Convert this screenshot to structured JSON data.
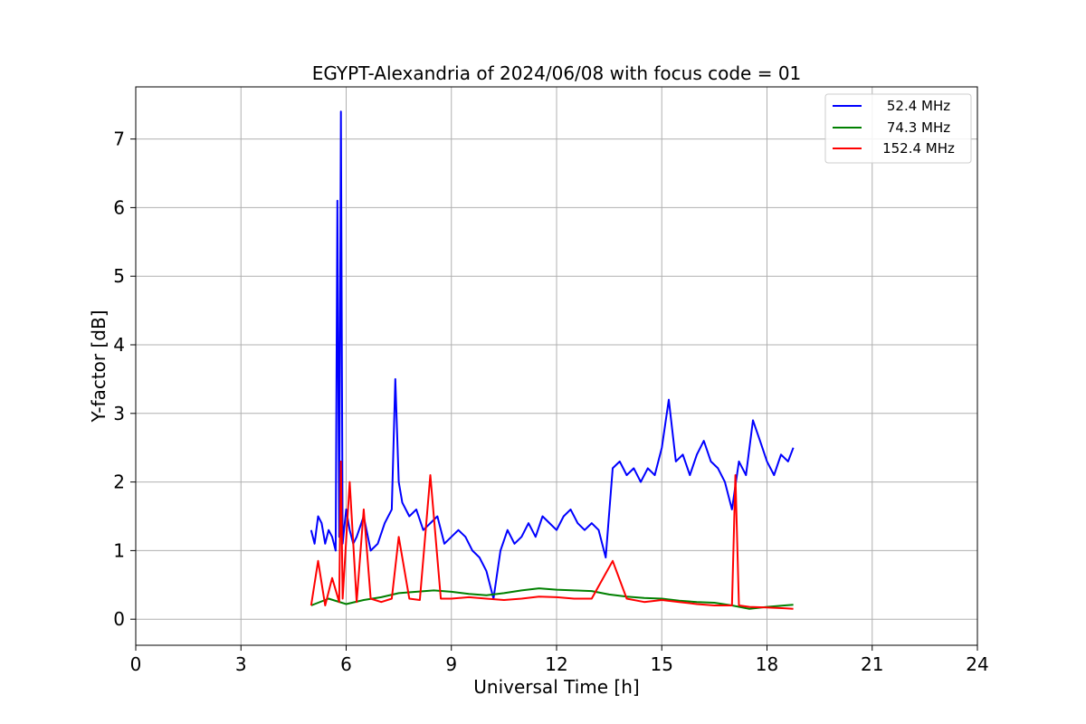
{
  "chart_data": {
    "type": "line",
    "title": "EGYPT-Alexandria of 2024/06/08 with focus code = 01",
    "xlabel": "Universal Time [h]",
    "ylabel": "Y-factor [dB]",
    "xlim": [
      0,
      24
    ],
    "ylim": [
      -0.38,
      7.76
    ],
    "xticks": [
      0,
      3,
      6,
      9,
      12,
      15,
      18,
      21,
      24
    ],
    "xtick_labels": [
      "0",
      "3",
      "6",
      "9",
      "12",
      "15",
      "18",
      "21",
      "24"
    ],
    "yticks": [
      0,
      1,
      2,
      3,
      4,
      5,
      6,
      7
    ],
    "ytick_labels": [
      "0",
      "1",
      "2",
      "3",
      "4",
      "5",
      "6",
      "7"
    ],
    "grid": true,
    "legend_position": "top-right",
    "series": [
      {
        "name": "52.4 MHz",
        "color": "#0000ff",
        "x": [
          5.0,
          5.1,
          5.2,
          5.3,
          5.4,
          5.5,
          5.6,
          5.7,
          5.75,
          5.8,
          5.85,
          5.9,
          6.0,
          6.1,
          6.2,
          6.3,
          6.5,
          6.7,
          6.9,
          7.1,
          7.3,
          7.4,
          7.5,
          7.6,
          7.8,
          8.0,
          8.2,
          8.4,
          8.6,
          8.8,
          9.0,
          9.2,
          9.4,
          9.6,
          9.8,
          10.0,
          10.2,
          10.4,
          10.6,
          10.8,
          11.0,
          11.2,
          11.4,
          11.6,
          11.8,
          12.0,
          12.2,
          12.4,
          12.6,
          12.8,
          13.0,
          13.2,
          13.4,
          13.6,
          13.8,
          14.0,
          14.2,
          14.4,
          14.6,
          14.8,
          15.0,
          15.2,
          15.4,
          15.6,
          15.8,
          16.0,
          16.2,
          16.4,
          16.6,
          16.8,
          17.0,
          17.2,
          17.4,
          17.6,
          17.8,
          18.0,
          18.2,
          18.4,
          18.6,
          18.75
        ],
        "y": [
          1.3,
          1.1,
          1.5,
          1.4,
          1.1,
          1.3,
          1.2,
          1.0,
          6.1,
          1.2,
          7.4,
          1.1,
          1.6,
          1.3,
          1.1,
          1.2,
          1.5,
          1.0,
          1.1,
          1.4,
          1.6,
          3.5,
          2.0,
          1.7,
          1.5,
          1.6,
          1.3,
          1.4,
          1.5,
          1.1,
          1.2,
          1.3,
          1.2,
          1.0,
          0.9,
          0.7,
          0.3,
          1.0,
          1.3,
          1.1,
          1.2,
          1.4,
          1.2,
          1.5,
          1.4,
          1.3,
          1.5,
          1.6,
          1.4,
          1.3,
          1.4,
          1.3,
          0.9,
          2.2,
          2.3,
          2.1,
          2.2,
          2.0,
          2.2,
          2.1,
          2.5,
          3.2,
          2.3,
          2.4,
          2.1,
          2.4,
          2.6,
          2.3,
          2.2,
          2.0,
          1.6,
          2.3,
          2.1,
          2.9,
          2.6,
          2.3,
          2.1,
          2.4,
          2.3,
          2.5
        ]
      },
      {
        "name": "74.3 MHz",
        "color": "#008000",
        "x": [
          5.0,
          5.5,
          6.0,
          6.5,
          7.0,
          7.5,
          8.0,
          8.5,
          9.0,
          9.5,
          10.0,
          10.5,
          11.0,
          11.5,
          12.0,
          12.5,
          13.0,
          13.5,
          14.0,
          14.5,
          15.0,
          15.5,
          16.0,
          16.5,
          17.0,
          17.5,
          18.0,
          18.5,
          18.75
        ],
        "y": [
          0.2,
          0.3,
          0.22,
          0.28,
          0.32,
          0.38,
          0.4,
          0.42,
          0.4,
          0.37,
          0.35,
          0.38,
          0.42,
          0.45,
          0.43,
          0.42,
          0.41,
          0.36,
          0.33,
          0.31,
          0.3,
          0.27,
          0.25,
          0.24,
          0.2,
          0.15,
          0.18,
          0.2,
          0.21
        ]
      },
      {
        "name": "152.4 MHz",
        "color": "#ff0000",
        "x": [
          5.0,
          5.2,
          5.4,
          5.6,
          5.8,
          5.85,
          5.9,
          6.1,
          6.3,
          6.5,
          6.7,
          7.0,
          7.3,
          7.5,
          7.8,
          8.1,
          8.4,
          8.7,
          9.0,
          9.5,
          10.0,
          10.5,
          11.0,
          11.5,
          12.0,
          12.5,
          13.0,
          13.6,
          14.0,
          14.5,
          15.0,
          15.5,
          16.0,
          16.5,
          17.0,
          17.1,
          17.2,
          17.5,
          18.0,
          18.5,
          18.75
        ],
        "y": [
          0.2,
          0.85,
          0.2,
          0.6,
          0.25,
          2.3,
          0.3,
          2.0,
          0.25,
          1.6,
          0.3,
          0.25,
          0.3,
          1.2,
          0.3,
          0.28,
          2.1,
          0.3,
          0.3,
          0.32,
          0.3,
          0.28,
          0.3,
          0.33,
          0.32,
          0.3,
          0.3,
          0.85,
          0.3,
          0.25,
          0.28,
          0.25,
          0.22,
          0.2,
          0.2,
          2.1,
          0.2,
          0.18,
          0.17,
          0.16,
          0.15
        ]
      }
    ]
  }
}
